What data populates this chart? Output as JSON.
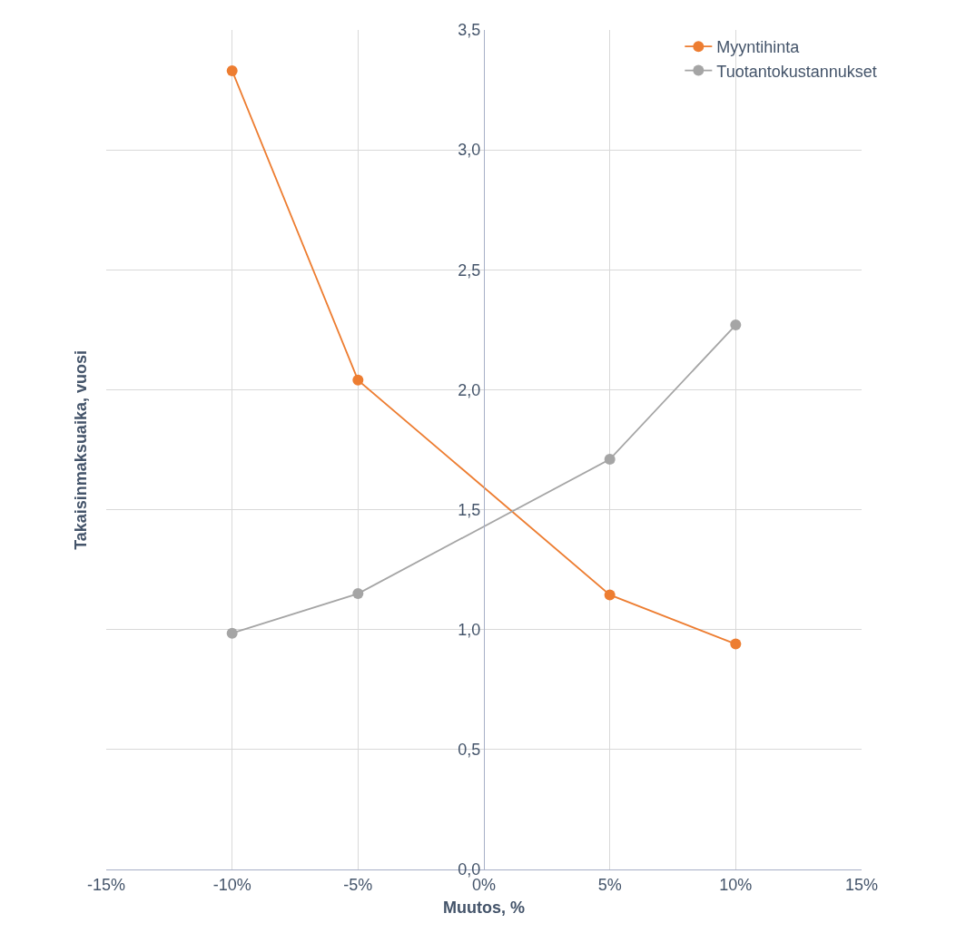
{
  "chart_data": {
    "type": "line",
    "xlabel": "Muutos, %",
    "ylabel": "Takaisinmaksuaika, vuosi",
    "x": [
      -10,
      -5,
      5,
      10
    ],
    "series": [
      {
        "name": "Myyntihinta",
        "color": "#ed7d31",
        "values": [
          3.33,
          2.04,
          1.145,
          0.94
        ]
      },
      {
        "name": "Tuotantokustannukset",
        "color": "#a5a5a5",
        "values": [
          0.985,
          1.15,
          1.71,
          2.27
        ]
      }
    ],
    "xlim": [
      -15,
      15
    ],
    "xticks": [
      {
        "value": -15,
        "label": "-15%"
      },
      {
        "value": -10,
        "label": "-10%"
      },
      {
        "value": -5,
        "label": "-5%"
      },
      {
        "value": 0,
        "label": "0%"
      },
      {
        "value": 5,
        "label": "5%"
      },
      {
        "value": 10,
        "label": "10%"
      },
      {
        "value": 15,
        "label": "15%"
      }
    ],
    "ylim": [
      0,
      3.5
    ],
    "yticks": [
      {
        "value": 0,
        "label": "0,0"
      },
      {
        "value": 0.5,
        "label": "0,5"
      },
      {
        "value": 1,
        "label": "1,0"
      },
      {
        "value": 1.5,
        "label": "1,5"
      },
      {
        "value": 2,
        "label": "2,0"
      },
      {
        "value": 2.5,
        "label": "2,5"
      },
      {
        "value": 3,
        "label": "3,0"
      },
      {
        "value": 3.5,
        "label": "3,5"
      }
    ],
    "grid": true,
    "legend": "top right",
    "marker": "circle",
    "line_style": "solid"
  }
}
